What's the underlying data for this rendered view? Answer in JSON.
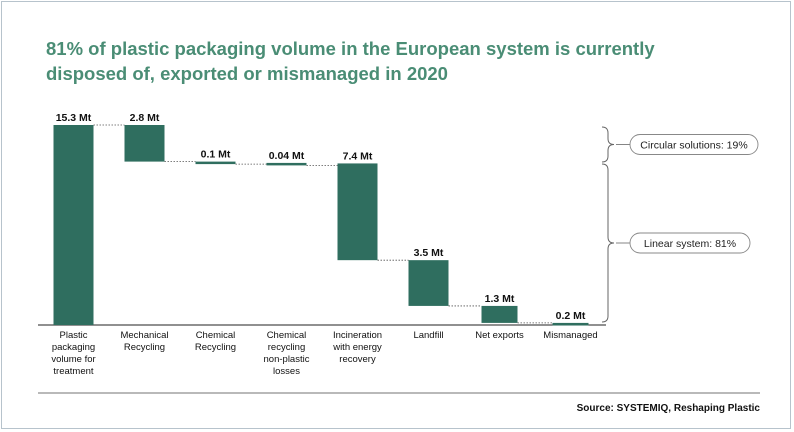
{
  "title_lines": [
    "81% of plastic packaging volume in the European system is currently",
    "disposed of, exported or mismanaged in 2020"
  ],
  "source": "Source: SYSTEMIQ, Reshaping Plastic",
  "colors": {
    "bar": "#2f6e5f",
    "title": "#4a8d75",
    "connector": "#555555",
    "bracket": "#666666"
  },
  "chart_data": {
    "type": "bar",
    "subtype": "waterfall",
    "unit": "Mt",
    "categories": [
      "Plastic packaging volume for treatment",
      "Mechanical Recycling",
      "Chemical Recycling",
      "Chemical recycling non-plastic losses",
      "Incineration with energy recovery",
      "Landfill",
      "Net exports",
      "Mismanaged"
    ],
    "category_lines": [
      [
        "Plastic",
        "packaging",
        "volume for",
        "treatment"
      ],
      [
        "Mechanical",
        "Recycling"
      ],
      [
        "Chemical",
        "Recycling"
      ],
      [
        "Chemical",
        "recycling",
        "non-plastic",
        "losses"
      ],
      [
        "Incineration",
        "with energy",
        "recovery"
      ],
      [
        "Landfill"
      ],
      [
        "Net exports"
      ],
      [
        "Mismanaged"
      ]
    ],
    "values": [
      15.3,
      2.8,
      0.1,
      0.04,
      7.4,
      3.5,
      1.3,
      0.2
    ],
    "labels": [
      "15.3 Mt",
      "2.8 Mt",
      "0.1 Mt",
      "0.04 Mt",
      "7.4 Mt",
      "3.5 Mt",
      "1.3 Mt",
      "0.2 Mt"
    ],
    "bar_kind": [
      "total",
      "decrement",
      "decrement",
      "decrement",
      "decrement",
      "decrement",
      "decrement",
      "decrement"
    ],
    "ylim": [
      0,
      15.3
    ],
    "grid": false,
    "groups": [
      {
        "label": "Circular solutions: 19%",
        "from": 1,
        "to": 3
      },
      {
        "label": "Linear system: 81%",
        "from": 4,
        "to": 7
      }
    ]
  }
}
